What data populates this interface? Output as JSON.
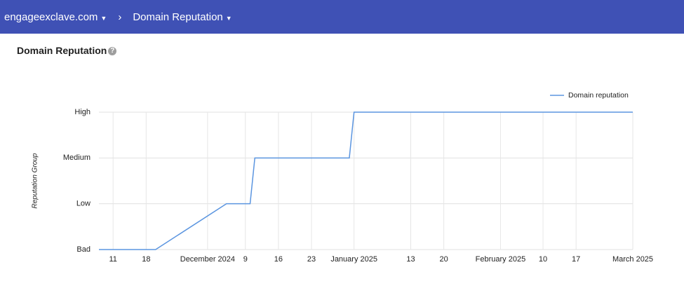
{
  "header": {
    "site": "engageexclave.com",
    "page": "Domain Reputation"
  },
  "section_title": "Domain Reputation",
  "chart_data": {
    "type": "line",
    "y_label": "Reputation Group",
    "x": [
      "2024-11-08",
      "2024-11-20",
      "2024-12-05",
      "2024-12-10",
      "2024-12-11",
      "2024-12-31",
      "2025-01-01",
      "2025-03-01"
    ],
    "series": [
      {
        "name": "Domain reputation",
        "color": "#5b95e0",
        "values": [
          0,
          0,
          1,
          1,
          2,
          2,
          3,
          3
        ]
      }
    ],
    "xlim": [
      "2024-11-08",
      "2025-03-01"
    ],
    "xticks": [
      {
        "value": "2024-11-11",
        "label": "11"
      },
      {
        "value": "2024-11-18",
        "label": "18"
      },
      {
        "value": "2024-12-01",
        "label": "December 2024"
      },
      {
        "value": "2024-12-09",
        "label": "9"
      },
      {
        "value": "2024-12-16",
        "label": "16"
      },
      {
        "value": "2024-12-23",
        "label": "23"
      },
      {
        "value": "2025-01-01",
        "label": "January 2025"
      },
      {
        "value": "2025-01-13",
        "label": "13"
      },
      {
        "value": "2025-01-20",
        "label": "20"
      },
      {
        "value": "2025-02-01",
        "label": "February 2025"
      },
      {
        "value": "2025-02-10",
        "label": "10"
      },
      {
        "value": "2025-02-17",
        "label": "17"
      },
      {
        "value": "2025-03-01",
        "label": "March 2025"
      }
    ],
    "ylim": [
      0,
      3
    ],
    "yticks": [
      {
        "value": 0,
        "label": "Bad"
      },
      {
        "value": 1,
        "label": "Low"
      },
      {
        "value": 2,
        "label": "Medium"
      },
      {
        "value": 3,
        "label": "High"
      }
    ],
    "grid": true,
    "legend": "top-right"
  }
}
